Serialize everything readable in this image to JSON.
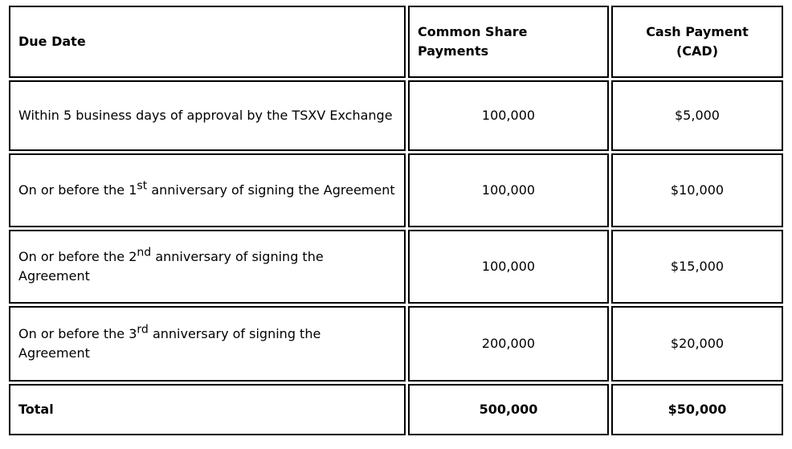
{
  "table": {
    "header": {
      "due_date": "Due Date",
      "common_share_line1": "Common Share",
      "common_share_line2": "Payments",
      "cash_payment_line1": "Cash Payment",
      "cash_payment_line2": "(CAD)"
    },
    "rows": [
      {
        "due_pre": "Within 5 business days of approval by the TSXV Exchange",
        "due_sup": "",
        "due_post": "",
        "shares": "100,000",
        "cash": "$5,000"
      },
      {
        "due_pre": "On or before the 1",
        "due_sup": "st",
        "due_post": " anniversary of signing the Agreement",
        "shares": "100,000",
        "cash": "$10,000"
      },
      {
        "due_pre": "On or before the 2",
        "due_sup": "nd",
        "due_post": " anniversary of signing the Agreement",
        "shares": "100,000",
        "cash": "$15,000"
      },
      {
        "due_pre": "On or before the 3",
        "due_sup": "rd",
        "due_post": " anniversary of signing the Agreement",
        "shares": "200,000",
        "cash": "$20,000"
      }
    ],
    "total": {
      "label": "Total",
      "shares": "500,000",
      "cash": "$50,000"
    }
  },
  "colors": {
    "border": "#000000",
    "text": "#000000",
    "background": "#ffffff"
  }
}
